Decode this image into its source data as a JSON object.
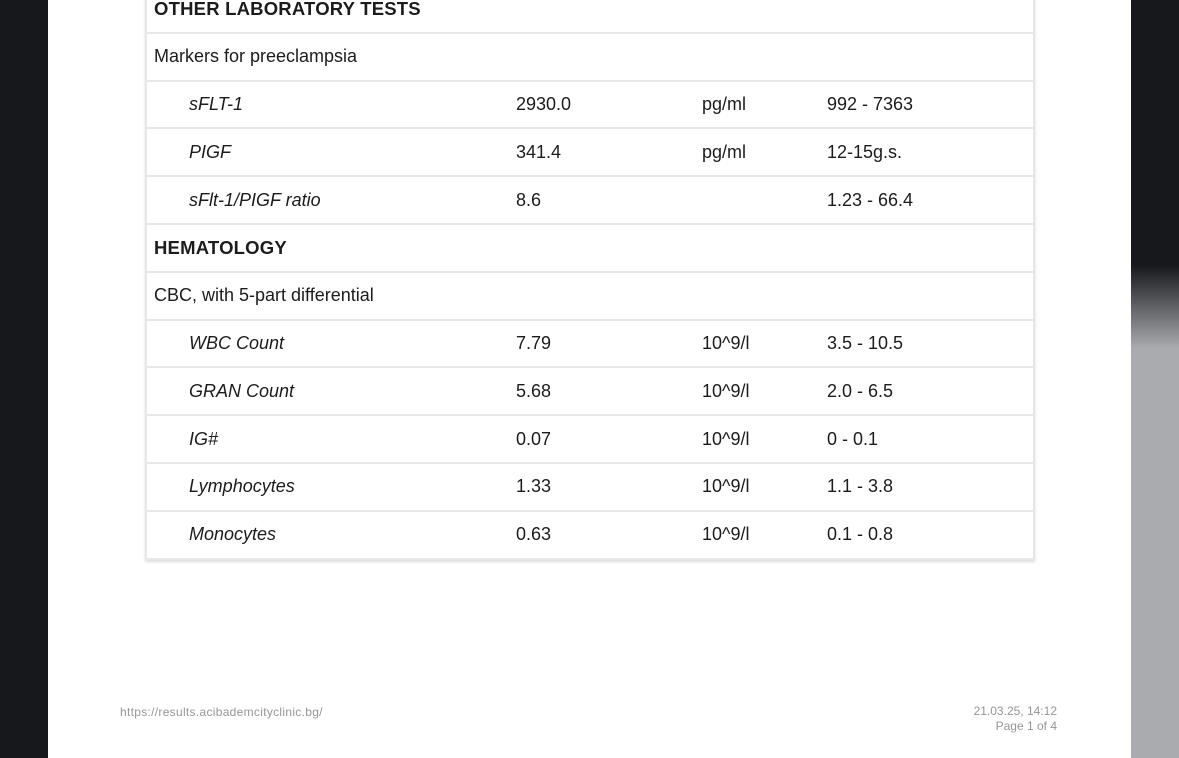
{
  "backdrop": {
    "left_strip_color": "#17181c",
    "right_strip_top_color": "#17181c",
    "right_strip_bottom_color": "#a9abae",
    "page_color": "#ffffff",
    "table_border_color": "#e7e7e9",
    "text_color": "#1c1c1e",
    "footer_text_color": "#96969a"
  },
  "report": {
    "rows": [
      {
        "type": "section",
        "label": "OTHER LABORATORY TESTS"
      },
      {
        "type": "group",
        "label": "Markers for preeclampsia"
      },
      {
        "type": "test",
        "name": "sFLT-1",
        "value": "2930.0",
        "unit": "pg/ml",
        "range": "992 - 7363"
      },
      {
        "type": "test",
        "name": "PIGF",
        "value": "341.4",
        "unit": "pg/ml",
        "range": "12-15g.s."
      },
      {
        "type": "test",
        "name": "sFlt-1/PIGF ratio",
        "value": "8.6",
        "unit": "",
        "range": "1.23 - 66.4"
      },
      {
        "type": "section",
        "label": "HEMATOLOGY"
      },
      {
        "type": "group",
        "label": "CBC, with 5-part differential"
      },
      {
        "type": "test",
        "name": "WBC Count",
        "value": "7.79",
        "unit": "10^9/l",
        "range": "3.5 - 10.5"
      },
      {
        "type": "test",
        "name": "GRAN Count",
        "value": "5.68",
        "unit": "10^9/l",
        "range": "2.0 - 6.5"
      },
      {
        "type": "test",
        "name": "IG#",
        "value": "0.07",
        "unit": "10^9/l",
        "range": "0 - 0.1"
      },
      {
        "type": "test",
        "name": "Lymphocytes",
        "value": "1.33",
        "unit": "10^9/l",
        "range": "1.1 - 3.8"
      },
      {
        "type": "test",
        "name": "Monocytes",
        "value": "0.63",
        "unit": "10^9/l",
        "range": "0.1 - 0.8"
      }
    ]
  },
  "footer": {
    "url": "https://results.acibademcityclinic.bg/",
    "datetime": "21.03.25, 14:12",
    "page_indicator": "Page 1 of 4"
  }
}
